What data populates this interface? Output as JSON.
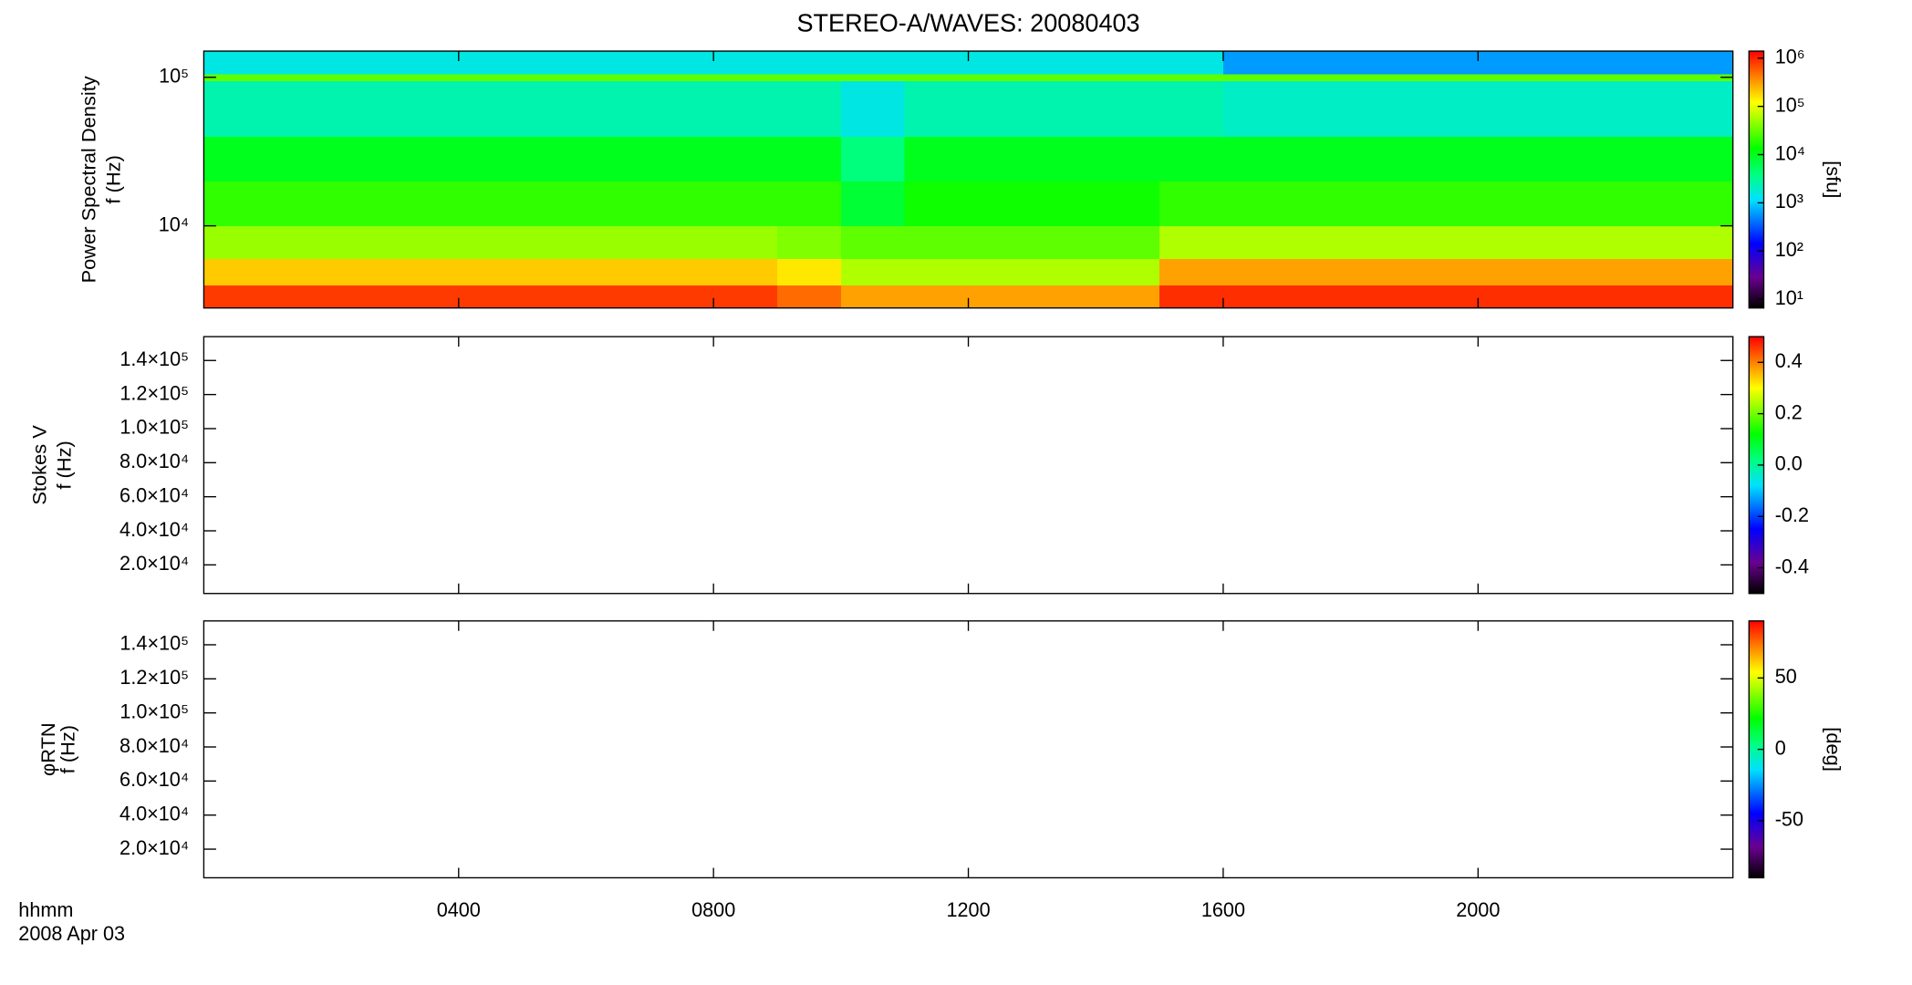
{
  "chart_data": [
    {
      "type": "heatmap",
      "title": "STEREO-A/WAVES: 20080403",
      "ylabel": "Power Spectral Density",
      "ylabel2": "f (Hz)",
      "yscale": "log",
      "ylim": [
        2800,
        150000
      ],
      "yticks": [
        {
          "value": 10000,
          "label": "10⁴"
        },
        {
          "value": 100000,
          "label": "10⁵"
        }
      ],
      "xlim": [
        0,
        24
      ],
      "x_edges": [
        0,
        1,
        2,
        3,
        4,
        5,
        6,
        7,
        8,
        9,
        10,
        11,
        12,
        13,
        14,
        15,
        16,
        17,
        18,
        19,
        20,
        21,
        22,
        23,
        24
      ],
      "y_edges": [
        2800,
        4000,
        6000,
        10000,
        20000,
        40000,
        95000,
        105000,
        150000
      ],
      "z": [
        [
          800000,
          800000,
          800000,
          800000,
          800000,
          800000,
          800000,
          800000,
          800000,
          500000,
          300000,
          300000,
          300000,
          300000,
          300000,
          900000,
          900000,
          900000,
          900000,
          900000,
          900000,
          900000,
          900000,
          900000
        ],
        [
          200000,
          200000,
          200000,
          200000,
          200000,
          200000,
          200000,
          200000,
          200000,
          150000,
          60000,
          60000,
          60000,
          60000,
          60000,
          300000,
          300000,
          300000,
          300000,
          300000,
          300000,
          300000,
          300000,
          300000
        ],
        [
          50000,
          50000,
          50000,
          50000,
          50000,
          50000,
          50000,
          50000,
          50000,
          40000,
          30000,
          30000,
          30000,
          30000,
          30000,
          60000,
          60000,
          60000,
          60000,
          60000,
          60000,
          60000,
          60000,
          60000
        ],
        [
          20000,
          20000,
          20000,
          20000,
          20000,
          20000,
          20000,
          20000,
          20000,
          20000,
          8000,
          15000,
          15000,
          15000,
          15000,
          20000,
          20000,
          20000,
          20000,
          20000,
          20000,
          20000,
          20000,
          20000
        ],
        [
          10000,
          10000,
          10000,
          10000,
          10000,
          10000,
          10000,
          10000,
          10000,
          10000,
          4000,
          10000,
          10000,
          10000,
          10000,
          10000,
          10000,
          10000,
          10000,
          10000,
          10000,
          10000,
          10000,
          10000
        ],
        [
          2500,
          2500,
          2500,
          2500,
          2500,
          2500,
          2500,
          2500,
          2500,
          2500,
          1500,
          2500,
          2500,
          2500,
          2500,
          2500,
          2000,
          2000,
          2000,
          2000,
          2000,
          2000,
          2000,
          2000
        ],
        [
          30000,
          30000,
          30000,
          30000,
          30000,
          30000,
          30000,
          30000,
          30000,
          30000,
          30000,
          30000,
          30000,
          30000,
          30000,
          30000,
          30000,
          30000,
          30000,
          30000,
          30000,
          30000,
          30000,
          30000
        ],
        [
          1500,
          1500,
          1500,
          1500,
          1500,
          1500,
          1500,
          1500,
          1500,
          1500,
          1500,
          1500,
          1500,
          1500,
          1500,
          1500,
          600,
          600,
          600,
          600,
          600,
          600,
          600,
          600
        ]
      ],
      "zscale": "log",
      "zlim": [
        6.6,
        1400000
      ],
      "zlabel": "[sfu]",
      "zticks": [
        {
          "value": 10,
          "label": "10¹"
        },
        {
          "value": 100,
          "label": "10²"
        },
        {
          "value": 1000,
          "label": "10³"
        },
        {
          "value": 10000,
          "label": "10⁴"
        },
        {
          "value": 100000,
          "label": "10⁵"
        },
        {
          "value": 1000000,
          "label": "10⁶"
        }
      ],
      "colorscale": [
        [
          0,
          "#000000"
        ],
        [
          0.12,
          "#6a0090"
        ],
        [
          0.25,
          "#0000ff"
        ],
        [
          0.42,
          "#00e0ff"
        ],
        [
          0.52,
          "#00ff80"
        ],
        [
          0.62,
          "#00ff00"
        ],
        [
          0.8,
          "#ffff00"
        ],
        [
          0.9,
          "#ff8000"
        ],
        [
          1,
          "#ff0000"
        ]
      ]
    },
    {
      "type": "heatmap",
      "ylabel": "Stokes V",
      "ylabel2": "f (Hz)",
      "yscale": "linear",
      "ylim": [
        3200,
        154000
      ],
      "xlim": [
        0,
        24
      ],
      "yticks": [
        {
          "value": 20000,
          "label": "2.0×10⁴"
        },
        {
          "value": 40000,
          "label": "4.0×10⁴"
        },
        {
          "value": 60000,
          "label": "6.0×10⁴"
        },
        {
          "value": 80000,
          "label": "8.0×10⁴"
        },
        {
          "value": 100000,
          "label": "1.0×10⁵"
        },
        {
          "value": 120000,
          "label": "1.2×10⁵"
        },
        {
          "value": 140000,
          "label": "1.4×10⁵"
        }
      ],
      "zscale": "linear",
      "zlim": [
        -0.5,
        0.5
      ],
      "zticks": [
        -0.4,
        -0.2,
        {
          "value": 0,
          "label": "0.0"
        },
        0.2,
        0.4
      ],
      "colorscale": [
        [
          0,
          "#000000"
        ],
        [
          0.12,
          "#6a0090"
        ],
        [
          0.25,
          "#0000ff"
        ],
        [
          0.42,
          "#00e0ff"
        ],
        [
          0.52,
          "#00ff80"
        ],
        [
          0.62,
          "#00ff00"
        ],
        [
          0.8,
          "#ffff00"
        ],
        [
          0.9,
          "#ff8000"
        ],
        [
          1,
          "#ff0000"
        ]
      ]
    },
    {
      "type": "heatmap",
      "ylabel": "φRTN",
      "ylabel2": "f (Hz)",
      "yscale": "linear",
      "ylim": [
        3200,
        154000
      ],
      "xlim": [
        0,
        24
      ],
      "yticks": [
        {
          "value": 20000,
          "label": "2.0×10⁴"
        },
        {
          "value": 40000,
          "label": "4.0×10⁴"
        },
        {
          "value": 60000,
          "label": "6.0×10⁴"
        },
        {
          "value": 80000,
          "label": "8.0×10⁴"
        },
        {
          "value": 100000,
          "label": "1.0×10⁵"
        },
        {
          "value": 120000,
          "label": "1.2×10⁵"
        },
        {
          "value": 140000,
          "label": "1.4×10⁵"
        }
      ],
      "xticks": [
        {
          "value": 4,
          "label": "0400"
        },
        {
          "value": 8,
          "label": "0800"
        },
        {
          "value": 12,
          "label": "1200"
        },
        {
          "value": 16,
          "label": "1600"
        },
        {
          "value": 20,
          "label": "2000"
        }
      ],
      "xlabel": "hhmm",
      "date_label": "2008 Apr 03",
      "zscale": "linear",
      "zlim": [
        -90,
        90
      ],
      "zlabel": "[deg]",
      "zticks": [
        -50,
        0,
        50
      ],
      "colorscale": [
        [
          0,
          "#000000"
        ],
        [
          0.12,
          "#6a0090"
        ],
        [
          0.25,
          "#0000ff"
        ],
        [
          0.42,
          "#00e0ff"
        ],
        [
          0.52,
          "#00ff80"
        ],
        [
          0.62,
          "#00ff00"
        ],
        [
          0.8,
          "#ffff00"
        ],
        [
          0.9,
          "#ff8000"
        ],
        [
          1,
          "#ff0000"
        ]
      ]
    }
  ]
}
